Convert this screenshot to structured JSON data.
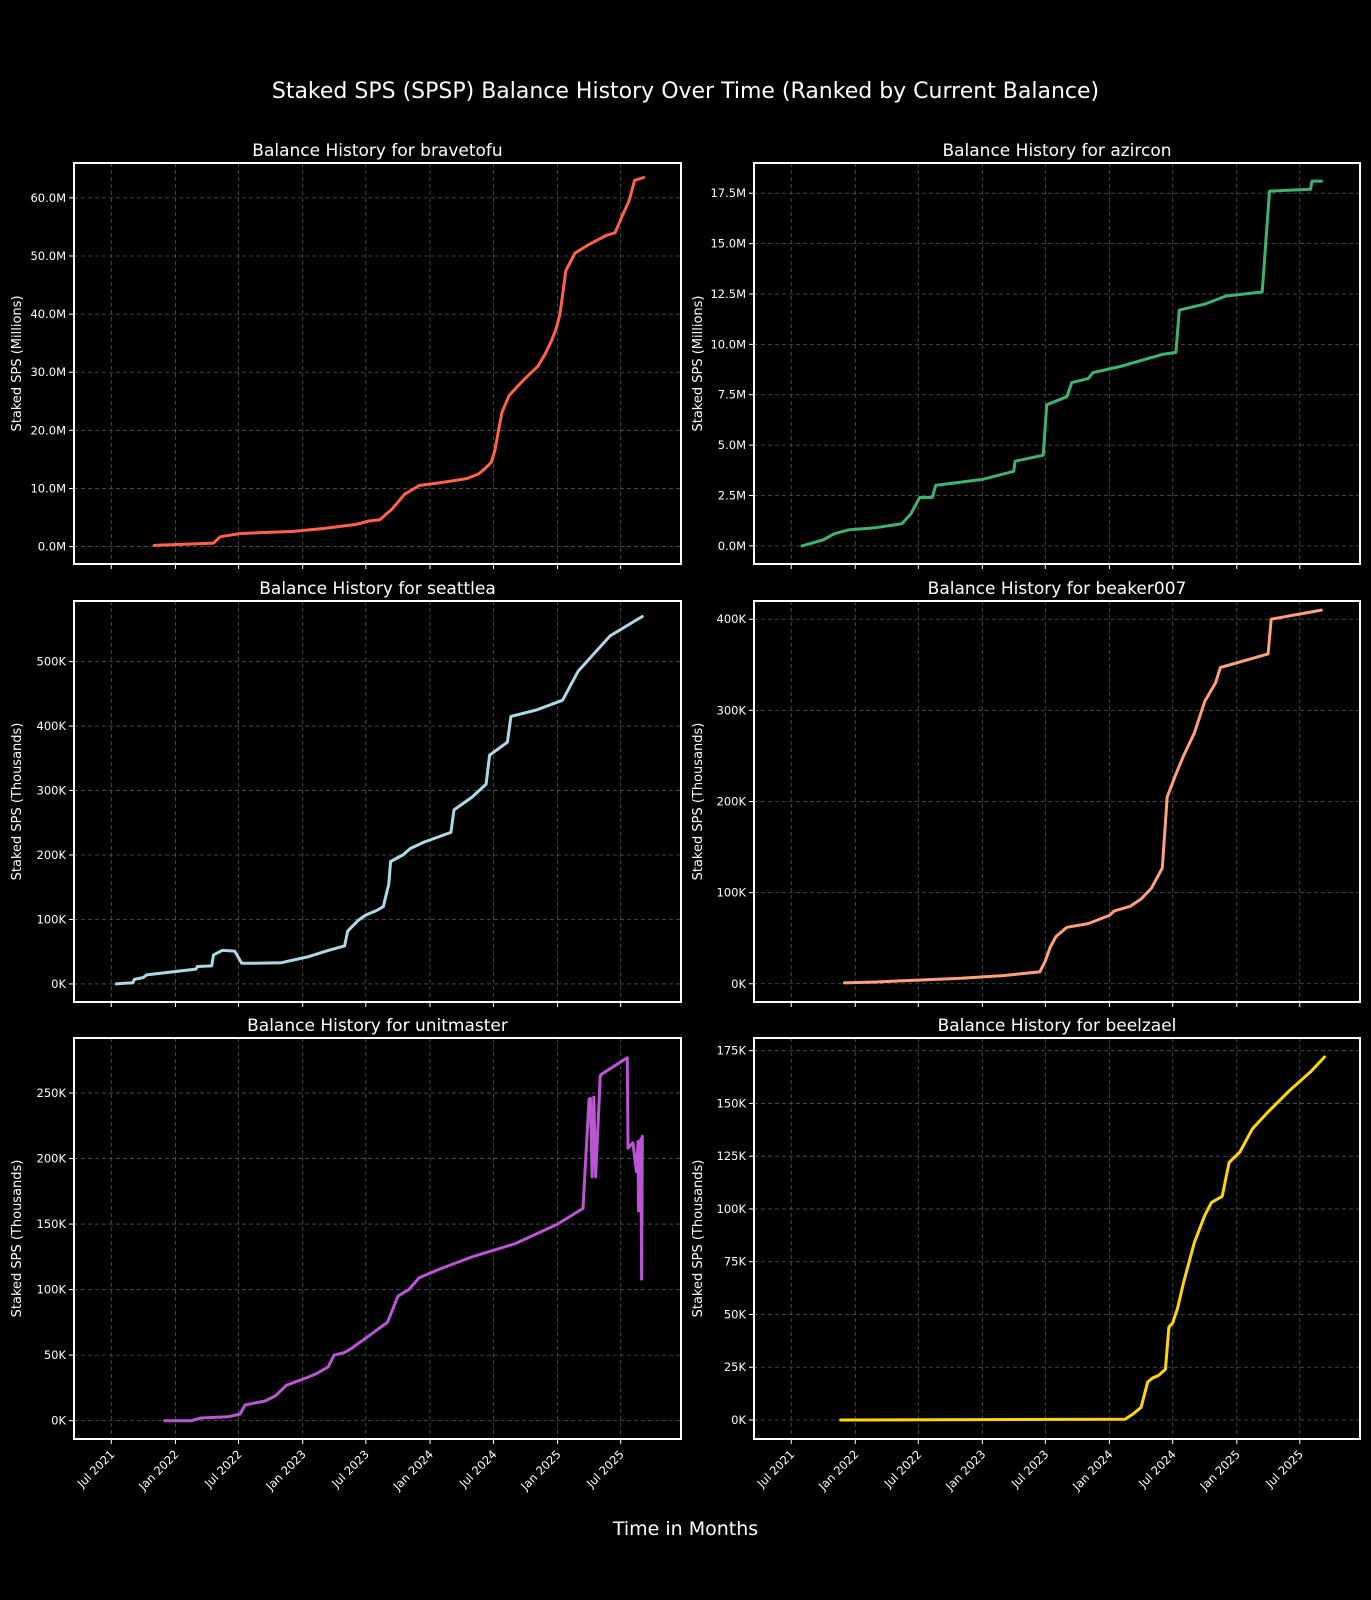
{
  "figure": {
    "title": "Staked SPS (SPSP) Balance History Over Time (Ranked by Current Balance)",
    "xlabel": "Time in Months",
    "background": "#000000",
    "grid_color": "#555555",
    "x_ticks": [
      "Jul 2021",
      "Jan 2022",
      "Jul 2022",
      "Jan 2023",
      "Jul 2023",
      "Jan 2024",
      "Jul 2024",
      "Jan 2025",
      "Jul 2025"
    ]
  },
  "chart_data": [
    {
      "type": "line",
      "title": "Balance History for bravetofu",
      "ylabel": "Staked SPS (Millions)",
      "color": "#ff6347",
      "ylim": [
        -3,
        66
      ],
      "y_ticks": [
        0,
        10,
        20,
        30,
        40,
        50,
        60
      ],
      "y_tick_labels": [
        "0.0M",
        "10.0M",
        "20.0M",
        "30.0M",
        "40.0M",
        "50.0M",
        "60.0M"
      ],
      "x_tick_labels_visible": false,
      "grid": true,
      "series": [
        {
          "x": [
            "2021-11-01",
            "2022-04-20",
            "2022-05-10",
            "2022-07-01",
            "2022-09-01",
            "2022-12-01",
            "2023-03-01",
            "2023-06-01",
            "2023-07-10",
            "2023-08-10",
            "2023-09-15",
            "2023-10-20",
            "2023-12-01",
            "2024-02-01",
            "2024-04-15",
            "2024-05-20",
            "2024-06-10",
            "2024-06-25",
            "2024-07-05",
            "2024-07-25",
            "2024-08-15",
            "2024-09-15",
            "2024-10-10",
            "2024-11-05",
            "2024-11-25",
            "2024-12-15",
            "2024-12-28",
            "2025-01-08",
            "2025-01-25",
            "2025-02-20",
            "2025-04-01",
            "2025-05-20",
            "2025-06-15",
            "2025-07-10",
            "2025-07-25",
            "2025-08-10",
            "2025-09-05"
          ],
          "y": [
            0.2,
            0.6,
            1.7,
            2.2,
            2.4,
            2.6,
            3.1,
            3.8,
            4.4,
            4.6,
            6.5,
            9.0,
            10.5,
            11.0,
            11.7,
            12.5,
            13.6,
            14.5,
            16.5,
            23.0,
            26.0,
            28.0,
            29.5,
            31.0,
            33.0,
            35.5,
            37.5,
            40.0,
            47.5,
            50.5,
            52.0,
            53.5,
            54.0,
            57.5,
            59.5,
            63.0,
            63.5
          ]
        }
      ]
    },
    {
      "type": "line",
      "title": "Balance History for azircon",
      "ylabel": "Staked SPS (Millions)",
      "color": "#3cb371",
      "ylim": [
        -0.9,
        19
      ],
      "y_ticks": [
        0,
        2.5,
        5,
        7.5,
        10,
        12.5,
        15,
        17.5
      ],
      "y_tick_labels": [
        "0.0M",
        "2.5M",
        "5.0M",
        "7.5M",
        "10.0M",
        "12.5M",
        "15.0M",
        "17.5M"
      ],
      "x_tick_labels_visible": false,
      "grid": true,
      "series": [
        {
          "x": [
            "2021-08-01",
            "2021-10-01",
            "2021-11-01",
            "2021-12-15",
            "2022-03-01",
            "2022-05-15",
            "2022-06-10",
            "2022-07-05",
            "2022-08-10",
            "2022-08-20",
            "2023-01-01",
            "2023-04-01",
            "2023-04-05",
            "2023-06-25",
            "2023-07-05",
            "2023-09-01",
            "2023-09-15",
            "2023-11-01",
            "2023-11-15",
            "2024-02-01",
            "2024-06-01",
            "2024-07-10",
            "2024-07-20",
            "2024-10-01",
            "2024-12-01",
            "2025-03-15",
            "2025-04-05",
            "2025-08-01",
            "2025-08-05",
            "2025-09-01"
          ],
          "y": [
            0.0,
            0.3,
            0.6,
            0.8,
            0.9,
            1.1,
            1.6,
            2.4,
            2.4,
            3.0,
            3.3,
            3.7,
            4.2,
            4.5,
            7.0,
            7.4,
            8.1,
            8.3,
            8.6,
            8.9,
            9.5,
            9.6,
            11.7,
            12.0,
            12.4,
            12.6,
            17.6,
            17.7,
            18.1,
            18.1
          ]
        }
      ]
    },
    {
      "type": "line",
      "title": "Balance History for seattlea",
      "ylabel": "Staked SPS (Thousands)",
      "color": "#add8e6",
      "ylim": [
        -28,
        594
      ],
      "y_ticks": [
        0,
        100,
        200,
        300,
        400,
        500
      ],
      "y_tick_labels": [
        "0K",
        "100K",
        "200K",
        "300K",
        "400K",
        "500K"
      ],
      "x_tick_labels_visible": false,
      "grid": true,
      "series": [
        {
          "x": [
            "2021-07-15",
            "2021-09-01",
            "2021-09-05",
            "2021-10-01",
            "2021-10-10",
            "2022-03-01",
            "2022-03-05",
            "2022-04-15",
            "2022-04-20",
            "2022-05-15",
            "2022-06-20",
            "2022-07-10",
            "2022-08-15",
            "2022-11-01",
            "2023-01-15",
            "2023-03-15",
            "2023-05-01",
            "2023-05-10",
            "2023-06-10",
            "2023-07-01",
            "2023-08-01",
            "2023-08-20",
            "2023-09-05",
            "2023-09-10",
            "2023-10-15",
            "2023-11-05",
            "2023-12-15",
            "2024-03-01",
            "2024-03-10",
            "2024-05-01",
            "2024-06-10",
            "2024-06-20",
            "2024-08-10",
            "2024-08-20",
            "2024-11-01",
            "2025-01-15",
            "2025-03-01",
            "2025-04-15",
            "2025-06-01",
            "2025-09-01"
          ],
          "y": [
            0,
            2,
            7,
            10,
            14,
            23,
            27,
            28,
            45,
            52,
            51,
            32,
            32,
            33,
            42,
            52,
            59,
            82,
            99,
            107,
            114,
            120,
            155,
            190,
            200,
            210,
            220,
            235,
            270,
            290,
            310,
            355,
            375,
            415,
            425,
            440,
            485,
            512,
            540,
            570
          ]
        }
      ]
    },
    {
      "type": "line",
      "title": "Balance History for beaker007",
      "ylabel": "Staked SPS (Thousands)",
      "color": "#ffa07a",
      "ylim": [
        -20,
        420
      ],
      "y_ticks": [
        0,
        100,
        200,
        300,
        400
      ],
      "y_tick_labels": [
        "0K",
        "100K",
        "200K",
        "300K",
        "400K"
      ],
      "x_tick_labels_visible": false,
      "grid": true,
      "series": [
        {
          "x": [
            "2021-12-01",
            "2022-03-01",
            "2022-07-01",
            "2022-11-01",
            "2023-03-01",
            "2023-06-15",
            "2023-07-01",
            "2023-07-15",
            "2023-08-01",
            "2023-09-01",
            "2023-11-01",
            "2024-01-01",
            "2024-01-15",
            "2024-03-01",
            "2024-04-01",
            "2024-05-01",
            "2024-06-01",
            "2024-06-15",
            "2024-07-10",
            "2024-08-01",
            "2024-09-01",
            "2024-10-01",
            "2024-11-01",
            "2024-11-15",
            "2025-04-01",
            "2025-04-10",
            "2025-09-01"
          ],
          "y": [
            1,
            2,
            4,
            6,
            9,
            13,
            25,
            40,
            52,
            62,
            66,
            75,
            80,
            85,
            93,
            105,
            127,
            205,
            230,
            250,
            275,
            310,
            330,
            347,
            362,
            400,
            410
          ]
        }
      ]
    },
    {
      "type": "line",
      "title": "Balance History for unitmaster",
      "ylabel": "Staked SPS (Thousands)",
      "color": "#ba55d3",
      "ylim": [
        -14,
        292
      ],
      "y_ticks": [
        0,
        50,
        100,
        150,
        200,
        250
      ],
      "y_tick_labels": [
        "0K",
        "50K",
        "100K",
        "150K",
        "200K",
        "250K"
      ],
      "x_tick_labels_visible": true,
      "grid": true,
      "series": [
        {
          "x": [
            "2021-12-01",
            "2022-02-15",
            "2022-03-15",
            "2022-06-01",
            "2022-07-05",
            "2022-07-20",
            "2022-09-15",
            "2022-10-15",
            "2022-11-15",
            "2023-01-15",
            "2023-02-10",
            "2023-03-15",
            "2023-04-01",
            "2023-05-01",
            "2023-05-20",
            "2023-09-01",
            "2023-09-10",
            "2023-10-01",
            "2023-11-01",
            "2023-12-01",
            "2024-02-01",
            "2024-05-01",
            "2024-09-01",
            "2025-01-01",
            "2025-03-15",
            "2025-04-01",
            "2025-04-05",
            "2025-04-10",
            "2025-04-15",
            "2025-04-20",
            "2025-05-01",
            "2025-05-03",
            "2025-05-05",
            "2025-07-20",
            "2025-07-22",
            "2025-08-05",
            "2025-08-15",
            "2025-08-20",
            "2025-08-21",
            "2025-08-28",
            "2025-08-30",
            "2025-09-01"
          ],
          "y": [
            0,
            0,
            2,
            3,
            5,
            12,
            15,
            19,
            27,
            33,
            36,
            41,
            50,
            52,
            55,
            75,
            81,
            95,
            100,
            109,
            116,
            125,
            135,
            150,
            162,
            245,
            246,
            186,
            247,
            186,
            248,
            262,
            264,
            277,
            208,
            212,
            190,
            213,
            160,
            215,
            108,
            217
          ]
        }
      ]
    },
    {
      "type": "line",
      "title": "Balance History for beelzael",
      "ylabel": "Staked SPS (Thousands)",
      "color": "#ffd700",
      "ylim": [
        -9,
        181
      ],
      "y_ticks": [
        0,
        25,
        50,
        75,
        100,
        125,
        150,
        175
      ],
      "y_tick_labels": [
        "0K",
        "25K",
        "50K",
        "75K",
        "100K",
        "125K",
        "150K",
        "175K"
      ],
      "x_tick_labels_visible": true,
      "grid": true,
      "series": [
        {
          "x": [
            "2021-11-20",
            "2023-01-01",
            "2024-02-15",
            "2024-03-10",
            "2024-04-01",
            "2024-04-20",
            "2024-05-05",
            "2024-05-20",
            "2024-06-10",
            "2024-06-20",
            "2024-07-01",
            "2024-07-15",
            "2024-08-01",
            "2024-09-01",
            "2024-10-01",
            "2024-10-20",
            "2024-11-20",
            "2024-12-10",
            "2025-01-10",
            "2025-02-15",
            "2025-04-01",
            "2025-06-01",
            "2025-08-01",
            "2025-09-10"
          ],
          "y": [
            0,
            0.2,
            0.4,
            3,
            6,
            18,
            20,
            21,
            24,
            44,
            46,
            53,
            65,
            84,
            97,
            103,
            106,
            122,
            127,
            138,
            146,
            156,
            165,
            172
          ]
        }
      ]
    }
  ]
}
